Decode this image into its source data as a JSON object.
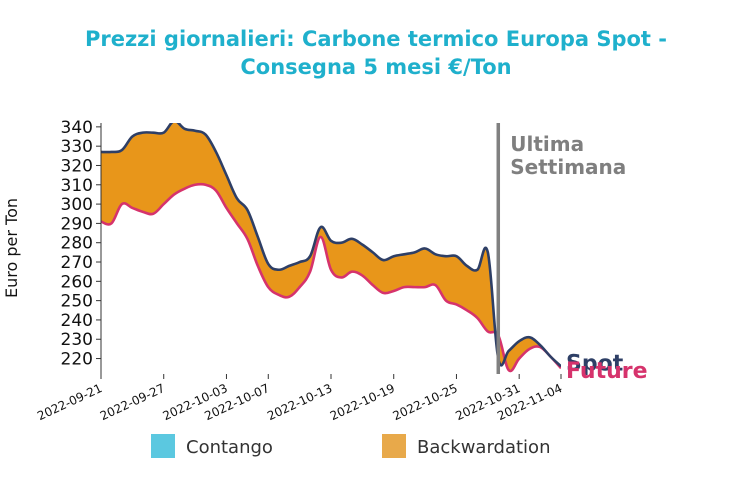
{
  "chart_data": {
    "type": "area",
    "title_lines": [
      "Prezzi giornalieri: Carbone termico Europa Spot -",
      "Consegna 5 mesi €/Ton"
    ],
    "ylabel": "Euro per Ton",
    "xlabel": "",
    "ylim": [
      212,
      342
    ],
    "yticks": [
      220,
      230,
      240,
      250,
      260,
      270,
      280,
      290,
      300,
      310,
      320,
      330,
      340
    ],
    "x_range": [
      "2022-09-21",
      "2022-11-04"
    ],
    "xticks": [
      "2022-09-21",
      "2022-09-27",
      "2022-10-03",
      "2022-10-07",
      "2022-10-13",
      "2022-10-19",
      "2022-10-25",
      "2022-10-31",
      "2022-11-04"
    ],
    "grid": false,
    "series": [
      {
        "name": "Spot",
        "color": "#2e3f66",
        "x": [
          "2022-09-21",
          "2022-09-22",
          "2022-09-23",
          "2022-09-24",
          "2022-09-25",
          "2022-09-26",
          "2022-09-27",
          "2022-09-28",
          "2022-09-29",
          "2022-09-30",
          "2022-10-01",
          "2022-10-02",
          "2022-10-03",
          "2022-10-04",
          "2022-10-05",
          "2022-10-06",
          "2022-10-07",
          "2022-10-08",
          "2022-10-09",
          "2022-10-10",
          "2022-10-11",
          "2022-10-12",
          "2022-10-13",
          "2022-10-14",
          "2022-10-15",
          "2022-10-16",
          "2022-10-17",
          "2022-10-18",
          "2022-10-19",
          "2022-10-20",
          "2022-10-21",
          "2022-10-22",
          "2022-10-23",
          "2022-10-24",
          "2022-10-25",
          "2022-10-26",
          "2022-10-27",
          "2022-10-28",
          "2022-10-29",
          "2022-10-30",
          "2022-10-31",
          "2022-11-01",
          "2022-11-02",
          "2022-11-03",
          "2022-11-04"
        ],
        "values": [
          327,
          327,
          328,
          335,
          337,
          337,
          337,
          343,
          339,
          338,
          336,
          327,
          315,
          303,
          297,
          283,
          269,
          266,
          268,
          270,
          273,
          288,
          281,
          280,
          282,
          279,
          275,
          271,
          273,
          274,
          275,
          277,
          274,
          273,
          273,
          268,
          266,
          275,
          220,
          224,
          229,
          231,
          227,
          221,
          216
        ]
      },
      {
        "name": "Future",
        "color": "#d6336c",
        "x": [
          "2022-09-21",
          "2022-09-22",
          "2022-09-23",
          "2022-09-24",
          "2022-09-25",
          "2022-09-26",
          "2022-09-27",
          "2022-09-28",
          "2022-09-29",
          "2022-09-30",
          "2022-10-01",
          "2022-10-02",
          "2022-10-03",
          "2022-10-04",
          "2022-10-05",
          "2022-10-06",
          "2022-10-07",
          "2022-10-08",
          "2022-10-09",
          "2022-10-10",
          "2022-10-11",
          "2022-10-12",
          "2022-10-13",
          "2022-10-14",
          "2022-10-15",
          "2022-10-16",
          "2022-10-17",
          "2022-10-18",
          "2022-10-19",
          "2022-10-20",
          "2022-10-21",
          "2022-10-22",
          "2022-10-23",
          "2022-10-24",
          "2022-10-25",
          "2022-10-26",
          "2022-10-27",
          "2022-10-28",
          "2022-10-29",
          "2022-10-30",
          "2022-10-31",
          "2022-11-01",
          "2022-11-02",
          "2022-11-03",
          "2022-11-04"
        ],
        "values": [
          291,
          290,
          300,
          298,
          296,
          295,
          300,
          305,
          308,
          310,
          310,
          307,
          298,
          290,
          282,
          268,
          257,
          253,
          252,
          257,
          265,
          283,
          266,
          262,
          265,
          263,
          258,
          254,
          255,
          257,
          257,
          257,
          258,
          250,
          248,
          245,
          241,
          234,
          232,
          214,
          220,
          225,
          226,
          221,
          215
        ]
      }
    ],
    "fills": [
      {
        "name": "Contango",
        "color": "#5bc8e0"
      },
      {
        "name": "Backwardation",
        "color": "#e8961a"
      }
    ],
    "annotations": [
      {
        "text_lines": [
          "Ultima",
          "Settimana"
        ],
        "at_x": "2022-10-29",
        "line_color": "#808080"
      }
    ],
    "legend": {
      "placement": "bottom-center",
      "items": [
        "Contango",
        "Backwardation"
      ],
      "colors": [
        "#5bc8e0",
        "#e8a94a"
      ]
    }
  }
}
